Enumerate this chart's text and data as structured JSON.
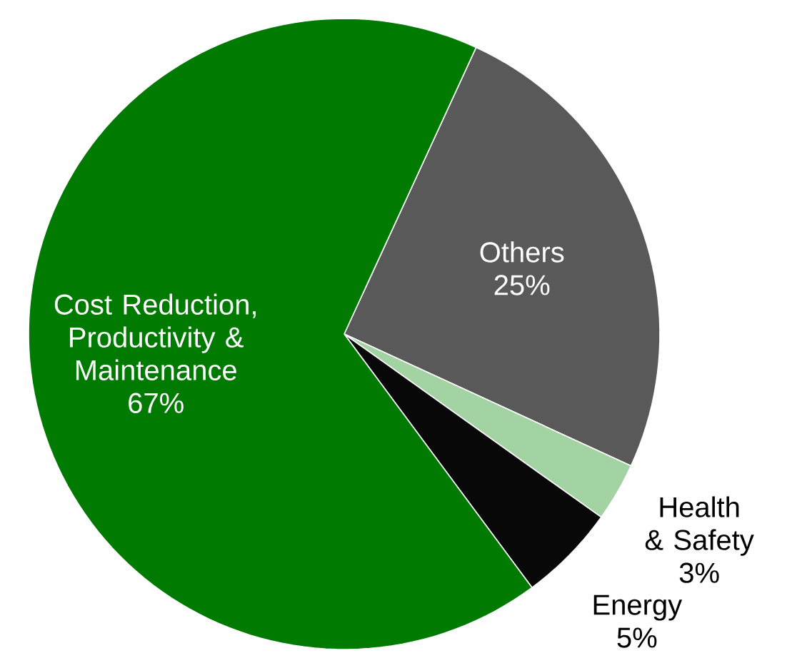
{
  "chart_data": {
    "type": "pie",
    "categories": [
      "Others",
      "Health & Safety",
      "Energy",
      "Cost Reduction, Productivity & Maintenance"
    ],
    "values": [
      25,
      3,
      5,
      67
    ],
    "value_labels": [
      "25%",
      "3%",
      "5%",
      "67%"
    ],
    "colors": [
      "#595959",
      "#a3d3a3",
      "#080808",
      "#007a00"
    ]
  }
}
